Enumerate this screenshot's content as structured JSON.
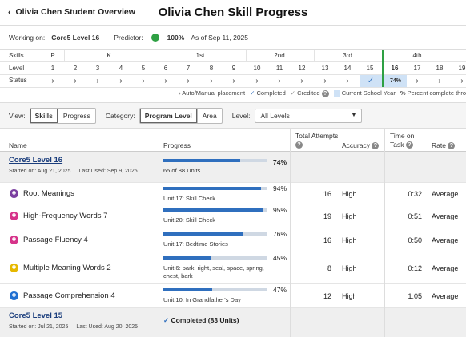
{
  "header": {
    "back_label": "Olivia Chen Student Overview",
    "title": "Olivia Chen Skill Progress"
  },
  "info": {
    "working_on_label": "Working on:",
    "working_on_value": "Core5 Level 16",
    "predictor_label": "Predictor:",
    "predictor_value": "100%",
    "predictor_color": "#2ea043",
    "as_of": "As of Sep 11, 2025"
  },
  "grid": {
    "row_labels": [
      "Skills",
      "Level",
      "Status"
    ],
    "grades": [
      "P",
      "K",
      "1st",
      "2nd",
      "3rd",
      "4th"
    ],
    "levels": [
      "1",
      "2",
      "3",
      "4",
      "5",
      "6",
      "7",
      "8",
      "9",
      "10",
      "11",
      "12",
      "13",
      "14",
      "15",
      "16",
      "17",
      "18",
      "19"
    ],
    "status_icon": "chevron-right-icon",
    "completed_level": "15",
    "current_level": "16",
    "current_level_pct": "74%"
  },
  "legend": {
    "auto_manual": "Auto/Manual placement",
    "completed": "Completed",
    "credited": "Credited",
    "current_year": "Current School Year",
    "percent_complete": "Percent complete thro"
  },
  "controls": {
    "view_label": "View:",
    "view_options": [
      "Skills",
      "Progress"
    ],
    "category_label": "Category:",
    "category_options": [
      "Program Level",
      "Area"
    ],
    "level_label": "Level:",
    "level_selected": "All Levels"
  },
  "table": {
    "headers": {
      "name": "Name",
      "progress": "Progress",
      "total_attempts": "Total Attempts",
      "accuracy": "Accuracy",
      "time_on_task": "Time on Task",
      "rate": "Rate"
    },
    "levels": [
      {
        "name": "Core5 Level 16",
        "started": "Started on: Aug 21, 2025",
        "last_used": "Last Used: Sep 9, 2025",
        "progress_pct": "74%",
        "progress_value": 0.74,
        "units": "65 of 88 Units"
      },
      {
        "name": "Core5 Level 15",
        "started": "Started on: Jul 21, 2025",
        "last_used": "Last Used: Aug 20, 2025",
        "completed": "Completed (83 Units)"
      }
    ],
    "skills": [
      {
        "name": "Root Meanings",
        "icon": "root-icon",
        "color": "#7b3fa0",
        "pct": "94%",
        "value": 0.94,
        "unit": "Unit 17: Skill Check",
        "attempts": "16",
        "accuracy": "High",
        "time": "0:32",
        "rate": "Average"
      },
      {
        "name": "High-Frequency Words 7",
        "icon": "hf-icon",
        "color": "#d6338a",
        "pct": "95%",
        "value": 0.95,
        "unit": "Unit 20: Skill Check",
        "attempts": "19",
        "accuracy": "High",
        "time": "0:51",
        "rate": "Average"
      },
      {
        "name": "Passage Fluency 4",
        "icon": "fluency-icon",
        "color": "#d6338a",
        "pct": "76%",
        "value": 0.76,
        "unit": "Unit 17: Bedtime Stories",
        "attempts": "16",
        "accuracy": "High",
        "time": "0:50",
        "rate": "Average"
      },
      {
        "name": "Multiple Meaning Words 2",
        "icon": "vocab-icon",
        "color": "#e6b800",
        "pct": "45%",
        "value": 0.45,
        "unit": "Unit 6: park, right, seal, space, spring, chest, bark",
        "attempts": "8",
        "accuracy": "High",
        "time": "0:12",
        "rate": "Average"
      },
      {
        "name": "Passage Comprehension 4",
        "icon": "comprehension-icon",
        "color": "#1f6fd1",
        "pct": "47%",
        "value": 0.47,
        "unit": "Unit 10: In Grandfather's Day",
        "attempts": "12",
        "accuracy": "High",
        "time": "1:05",
        "rate": "Average"
      }
    ]
  }
}
